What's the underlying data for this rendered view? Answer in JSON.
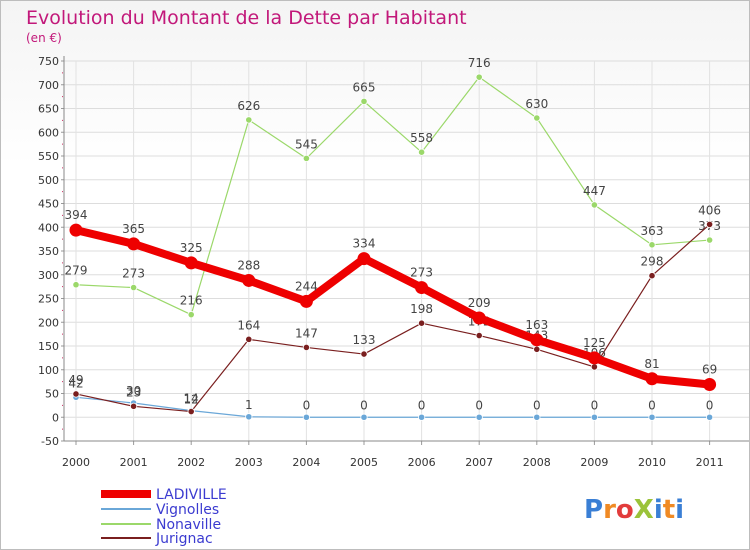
{
  "chart_data": {
    "type": "line",
    "title": "Evolution du Montant de la Dette par Habitant",
    "subtitle": "(en €)",
    "categories": [
      "2000",
      "2001",
      "2002",
      "2003",
      "2004",
      "2005",
      "2006",
      "2007",
      "2008",
      "2009",
      "2010",
      "2011"
    ],
    "ylim": [
      -50,
      750
    ],
    "yticks": [
      -50,
      0,
      50,
      100,
      150,
      200,
      250,
      300,
      350,
      400,
      450,
      500,
      550,
      600,
      650,
      700,
      750
    ],
    "ytick_labels": [
      "-50",
      "0",
      "50",
      "100",
      "150",
      "200",
      "250",
      "300",
      "350",
      "400",
      "450",
      "500",
      "550",
      "600",
      "650",
      "700",
      "750"
    ],
    "grid": true,
    "legend_position": "bottom-left",
    "series": [
      {
        "name": "LADIVILLE",
        "color": "#ee0000",
        "values": [
          394,
          365,
          325,
          288,
          244,
          334,
          273,
          209,
          163,
          125,
          81,
          69
        ],
        "data_labels": [
          "394",
          "365",
          "325",
          "288",
          "244",
          "334",
          "273",
          "209",
          "163",
          "125",
          "81",
          "69"
        ]
      },
      {
        "name": "Vignolles",
        "color": "#6aa7d8",
        "values": [
          42,
          30,
          14,
          1,
          0,
          0,
          0,
          0,
          0,
          0,
          0,
          0
        ],
        "data_labels": [
          "42",
          "30",
          "14",
          "1",
          "0",
          "0",
          "0",
          "0",
          "0",
          "0",
          "0",
          "0"
        ]
      },
      {
        "name": "Nonaville",
        "color": "#9bd86a",
        "values": [
          279,
          273,
          216,
          626,
          545,
          665,
          558,
          716,
          630,
          447,
          363,
          373
        ],
        "data_labels": [
          "279",
          "273",
          "216",
          "626",
          "545",
          "665",
          "558",
          "716",
          "630",
          "447",
          "363",
          "373"
        ]
      },
      {
        "name": "Jurignac",
        "color": "#7a1f1f",
        "values": [
          49,
          23,
          12,
          164,
          147,
          133,
          198,
          172,
          143,
          106,
          298,
          406
        ],
        "data_labels": [
          "49",
          "23",
          "12",
          "164",
          "147",
          "133",
          "198",
          "172",
          "143",
          "106",
          "298",
          "406"
        ]
      }
    ]
  },
  "brand": {
    "text": "ProXiti"
  },
  "colors": {
    "title": "#c2187a",
    "axis_text": "#333333",
    "grid": "#dddddd",
    "legend_text": "#3b3bd0"
  }
}
